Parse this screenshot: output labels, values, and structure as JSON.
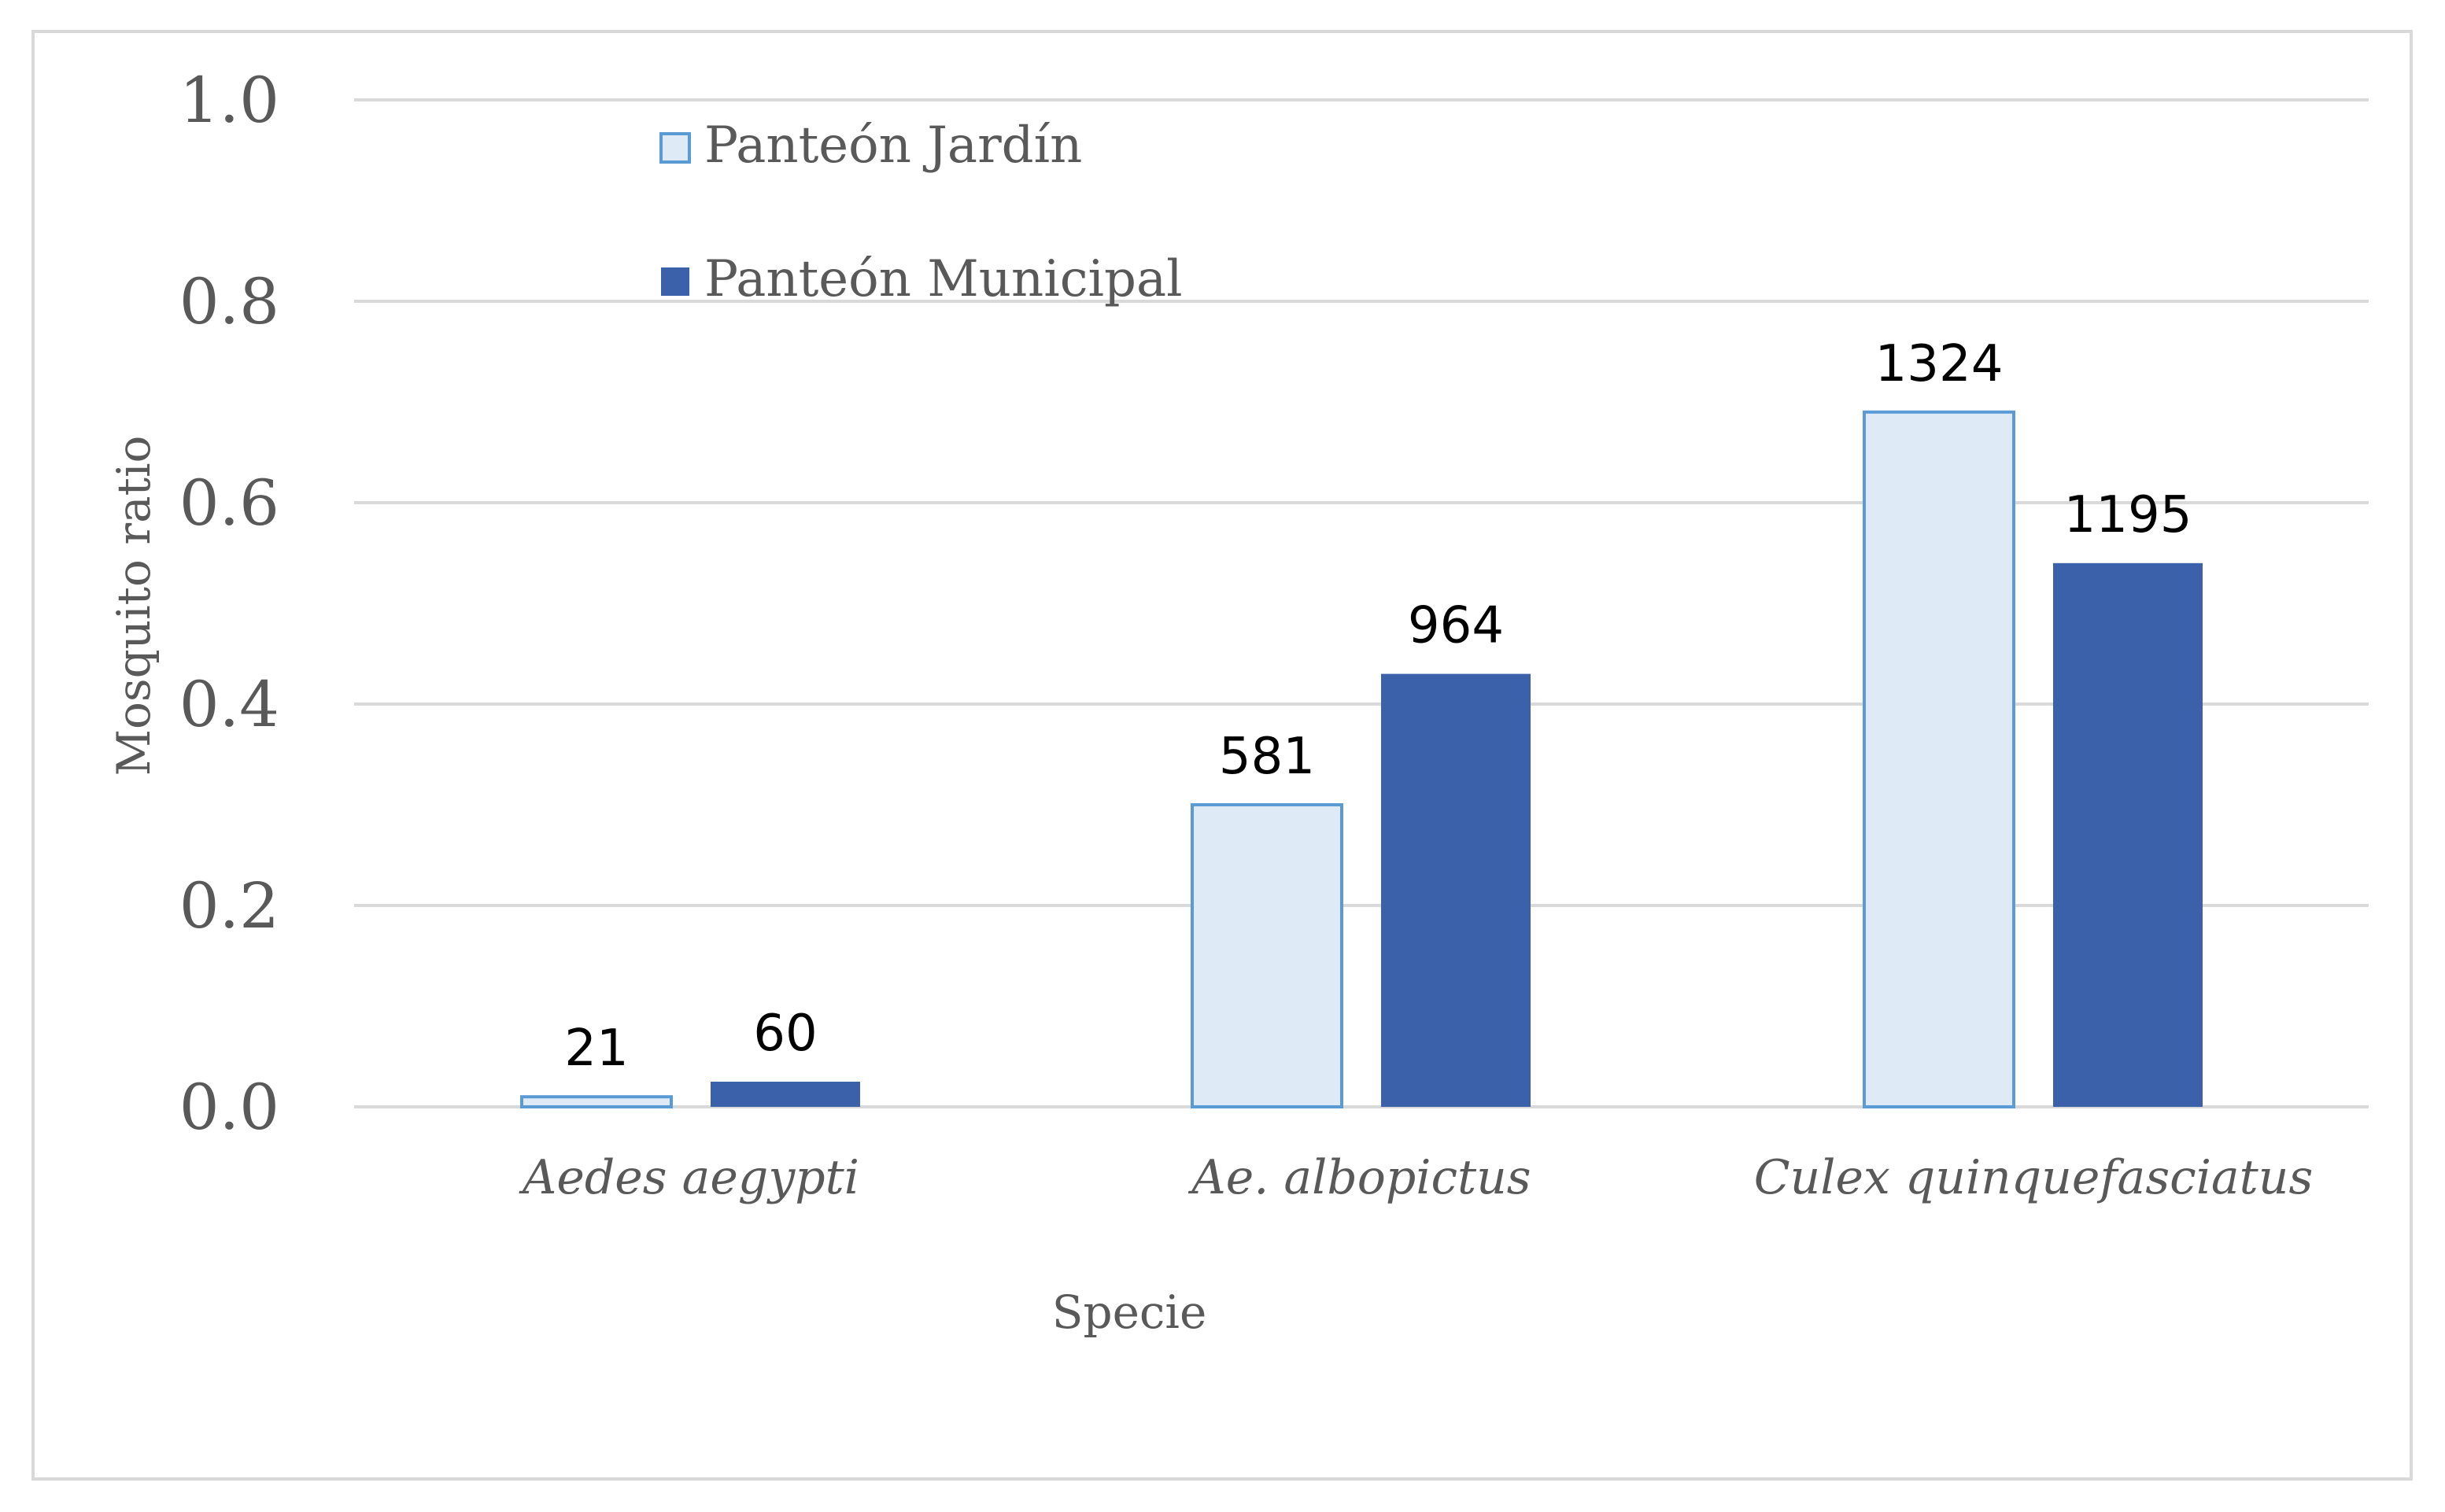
{
  "chart_data": {
    "type": "bar",
    "title": "",
    "xlabel": "Specie",
    "ylabel": "Mosquito ratio",
    "ylim": [
      0,
      1.0
    ],
    "yticks": [
      "0.0",
      "0.2",
      "0.4",
      "0.6",
      "0.8",
      "1.0"
    ],
    "categories": [
      "Aedes aegypti",
      "Ae. albopictus",
      "Culex quinquefasciatus"
    ],
    "series": [
      {
        "name": "Panteón Jardín",
        "values": [
          0.01,
          0.3,
          0.69
        ],
        "labels": [
          "21",
          "581",
          "1324"
        ],
        "fill": "#deebf7",
        "stroke": "#5b9bd5"
      },
      {
        "name": "Panteón Municipal",
        "values": [
          0.025,
          0.43,
          0.54
        ],
        "labels": [
          "60",
          "964",
          "1195"
        ],
        "fill": "#3a61aa",
        "stroke": "#3a61aa"
      }
    ],
    "grid": true,
    "legend_position": "top-left"
  }
}
